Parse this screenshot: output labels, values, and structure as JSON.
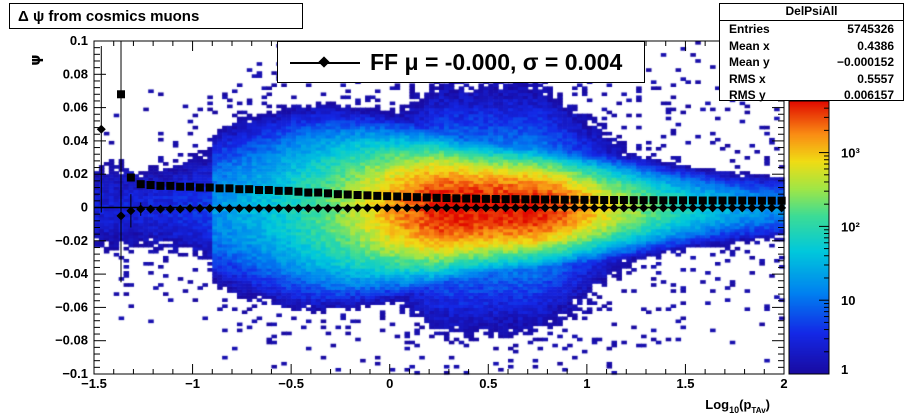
{
  "title": "Δ ψ from cosmics muons",
  "stats": {
    "name": "DelPsiAll",
    "rows": [
      {
        "label": "Entries",
        "value": "5745326"
      },
      {
        "label": "Mean x",
        "value": "0.4386"
      },
      {
        "label": "Mean y",
        "value": "−0.000152"
      },
      {
        "label": "RMS x",
        "value": "0.5557"
      },
      {
        "label": "RMS y",
        "value": "0.006157"
      }
    ]
  },
  "legend": {
    "entry": "FF μ = -0.000, σ =   0.004"
  },
  "colors": {
    "marker": "#000000",
    "palette_low": "#1a0aa0",
    "palette_high": "#e00000"
  },
  "chart_data": {
    "type": "heatmap",
    "xlabel": "Log10(pTAv)",
    "ylabel": "ψ",
    "xlim": [
      -1.5,
      2
    ],
    "ylim": [
      -0.1,
      0.1
    ],
    "x_ticks": [
      "−1.5",
      "−1",
      "−0.5",
      "0",
      "0.5",
      "1",
      "1.5",
      "2"
    ],
    "y_ticks": [
      "−0.1",
      "−0.08",
      "−0.06",
      "−0.04",
      "−0.02",
      "0",
      "0.02",
      "0.04",
      "0.06",
      "0.08",
      "0.1"
    ],
    "z_scale": "log",
    "z_range": [
      1,
      5000
    ],
    "z_ticks": [
      "1",
      "10",
      "10²",
      "10³"
    ],
    "series": [
      {
        "name": "FF",
        "marker": "diamond",
        "x": [
          -1.463,
          -1.363,
          -1.313,
          -1.263,
          -1.213,
          -1.163,
          -1.113,
          -1.063,
          -1.013,
          -0.963,
          -0.913,
          -0.863,
          -0.813,
          -0.763,
          -0.713,
          -0.663,
          -0.613,
          -0.563,
          -0.513,
          -0.463,
          -0.413,
          -0.363,
          -0.313,
          -0.263,
          -0.213,
          -0.163,
          -0.113,
          -0.063,
          -0.013,
          0.038,
          0.088,
          0.138,
          0.188,
          0.238,
          0.288,
          0.338,
          0.388,
          0.438,
          0.488,
          0.538,
          0.588,
          0.638,
          0.688,
          0.738,
          0.788,
          0.838,
          0.888,
          0.938,
          0.988,
          1.038,
          1.088,
          1.138,
          1.188,
          1.238,
          1.288,
          1.338,
          1.388,
          1.438,
          1.488,
          1.538,
          1.588,
          1.638,
          1.688,
          1.738,
          1.788,
          1.838,
          1.888,
          1.938,
          1.988
        ],
        "y": [
          0.047,
          -0.005,
          -0.002,
          -0.001,
          -0.001,
          -0.001,
          -0.001,
          -0.001,
          -0.0005,
          -0.0005,
          -0.0005,
          -0.0005,
          -0.0005,
          -0.0005,
          -0.0005,
          -0.0005,
          -0.0005,
          -0.0005,
          -0.0005,
          -0.0005,
          -0.0005,
          -0.0005,
          -0.0005,
          -0.0005,
          -0.0005,
          -0.0003,
          -0.0003,
          -0.0003,
          -0.0003,
          -0.0003,
          -0.0003,
          -0.0003,
          -0.0002,
          -0.0002,
          -0.0002,
          -0.0002,
          -0.0002,
          -0.0002,
          -0.0002,
          -0.0002,
          -0.0002,
          -0.0002,
          -0.0002,
          -0.0002,
          -0.0002,
          -0.0002,
          -0.0002,
          -0.0002,
          -0.0002,
          -0.0002,
          -0.0002,
          -0.0002,
          -0.0002,
          -0.0002,
          -0.0002,
          -0.0002,
          -0.0002,
          -0.0002,
          -0.0002,
          -0.0002,
          -0.0002,
          -0.0002,
          -0.0002,
          -0.0002,
          -0.0002,
          -0.0002,
          -0.0002,
          -0.0002,
          -0.0002
        ],
        "y_err": [
          0.05,
          0.04,
          0.01,
          0.004,
          0.002,
          0.002,
          0.001,
          0.001,
          0.001,
          0.001,
          0.001,
          0.001,
          0.001,
          0.001,
          0.001,
          0.001,
          0.001,
          0.001,
          0.001,
          0.001,
          0.001,
          0.001,
          0.001,
          0.001,
          0.001,
          0.001,
          0.001,
          0.001,
          0.001,
          0.001,
          0.001,
          0.001,
          0.001,
          0.001,
          0.001,
          0.001,
          0.001,
          0.001,
          0.001,
          0.001,
          0.001,
          0.001,
          0.001,
          0.001,
          0.001,
          0.001,
          0.001,
          0.001,
          0.001,
          0.001,
          0.001,
          0.001,
          0.001,
          0.001,
          0.001,
          0.001,
          0.001,
          0.001,
          0.001,
          0.001,
          0.001,
          0.001,
          0.001,
          0.001,
          0.001,
          0.001,
          0.001,
          0.001,
          0.001
        ]
      },
      {
        "name": "",
        "marker": "square",
        "x": [
          -1.363,
          -1.313,
          -1.263,
          -1.213,
          -1.163,
          -1.113,
          -1.063,
          -1.013,
          -0.963,
          -0.913,
          -0.863,
          -0.813,
          -0.763,
          -0.713,
          -0.663,
          -0.613,
          -0.563,
          -0.513,
          -0.463,
          -0.413,
          -0.363,
          -0.313,
          -0.263,
          -0.213,
          -0.163,
          -0.113,
          -0.063,
          -0.013,
          0.038,
          0.088,
          0.138,
          0.188,
          0.238,
          0.288,
          0.338,
          0.388,
          0.438,
          0.488,
          0.538,
          0.588,
          0.638,
          0.688,
          0.738,
          0.788,
          0.838,
          0.888,
          0.938,
          0.988,
          1.038,
          1.088,
          1.138,
          1.188,
          1.238,
          1.288,
          1.338,
          1.388,
          1.438,
          1.488,
          1.538,
          1.588,
          1.638,
          1.688,
          1.738,
          1.788,
          1.838,
          1.888,
          1.938,
          1.988
        ],
        "y": [
          0.068,
          0.018,
          0.014,
          0.0135,
          0.013,
          0.013,
          0.0125,
          0.0125,
          0.012,
          0.012,
          0.0115,
          0.0115,
          0.011,
          0.011,
          0.0105,
          0.0105,
          0.01,
          0.01,
          0.0095,
          0.009,
          0.009,
          0.0085,
          0.008,
          0.0078,
          0.0075,
          0.0073,
          0.007,
          0.0068,
          0.0066,
          0.0064,
          0.0062,
          0.006,
          0.0058,
          0.0057,
          0.0055,
          0.0054,
          0.0053,
          0.0052,
          0.0051,
          0.005,
          0.005,
          0.0049,
          0.0049,
          0.0048,
          0.0048,
          0.0047,
          0.0047,
          0.0046,
          0.0046,
          0.0045,
          0.0045,
          0.0045,
          0.0044,
          0.0044,
          0.0044,
          0.0043,
          0.0043,
          0.0043,
          0.0043,
          0.0042,
          0.0042,
          0.0042,
          0.0042,
          0.0042,
          0.0041,
          0.0041,
          0.0041,
          0.0041
        ]
      }
    ]
  }
}
